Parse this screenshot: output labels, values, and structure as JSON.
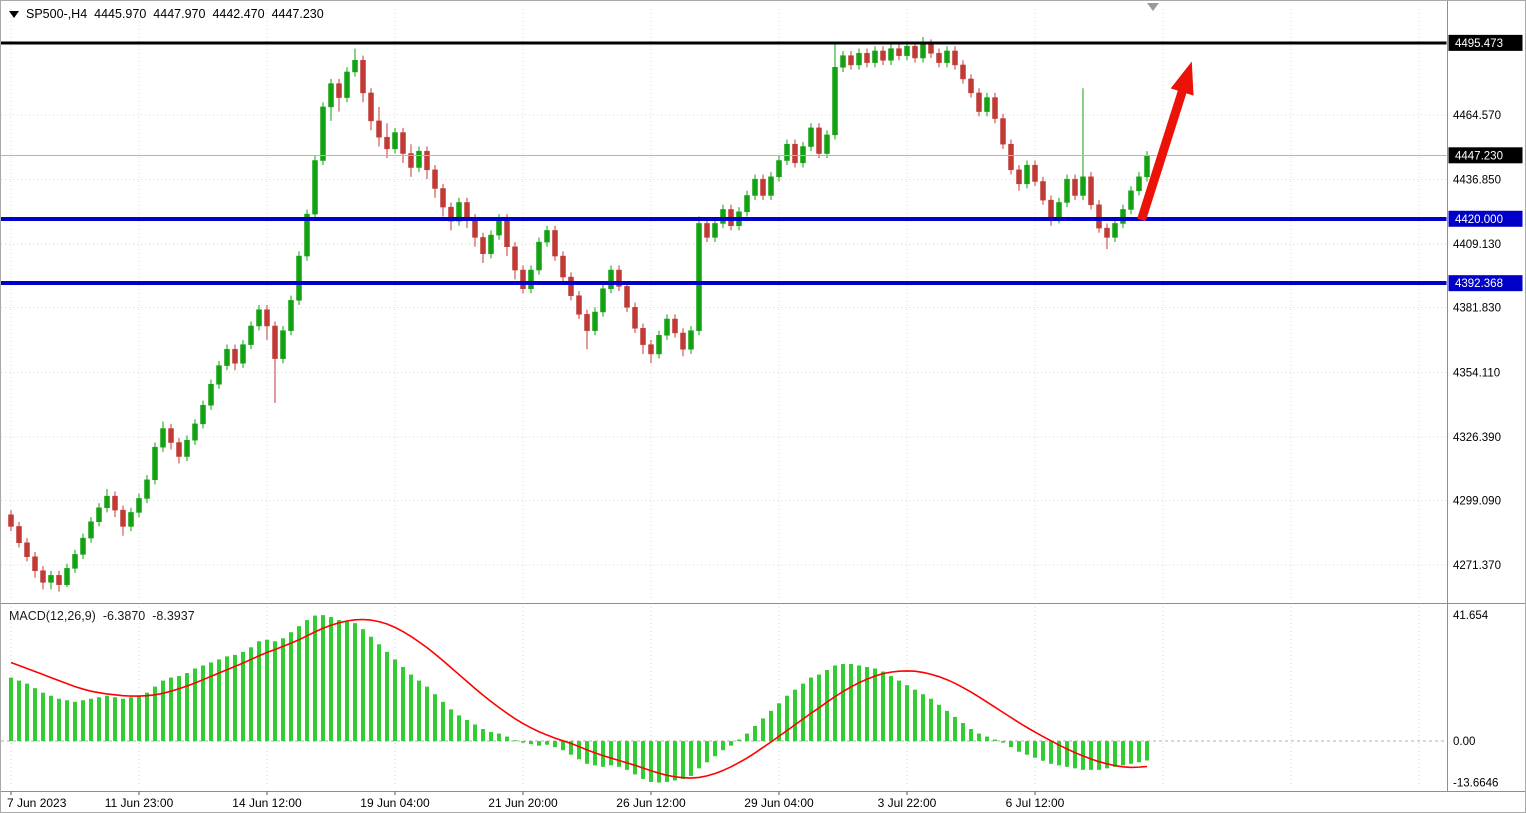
{
  "symbol_info": {
    "symbol": "SP500-,H4",
    "open": "4445.970",
    "high": "4447.970",
    "low": "4442.470",
    "close": "4447.230"
  },
  "macd_label": {
    "name": "MACD(12,26,9)",
    "main_value": "-6.3870",
    "signal_value": "-8.3937"
  },
  "colors": {
    "candle_up": "#12a212",
    "candle_down": "#c13b36",
    "macd_histogram": "#33cc33",
    "macd_signal": "#ff0000",
    "level_blue": "#0000c8",
    "level_black": "#000000",
    "current_price_line": "#b4b4b4",
    "grid": "#d6d6d6",
    "axis_text": "#000000",
    "arrow_red": "#ed1208"
  },
  "chart_data": [
    {
      "type": "candlestick",
      "title": "SP500-,H4",
      "symbol": "SP500-",
      "timeframe": "H4",
      "price_axis": {
        "range": [
          4256,
          4504
        ],
        "ticks": [
          {
            "value": 4464.57,
            "label": "4464.570"
          },
          {
            "value": 4436.85,
            "label": "4436.850"
          },
          {
            "value": 4409.13,
            "label": "4409.130"
          },
          {
            "value": 4381.83,
            "label": "4381.830"
          },
          {
            "value": 4354.11,
            "label": "4354.110"
          },
          {
            "value": 4326.39,
            "label": "4326.390"
          },
          {
            "value": 4299.09,
            "label": "4299.090"
          },
          {
            "value": 4271.37,
            "label": "4271.370"
          }
        ]
      },
      "x_labels": [
        {
          "index": 0,
          "label": "7 Jun 2023"
        },
        {
          "index": 16,
          "label": "11 Jun 23:00"
        },
        {
          "index": 32,
          "label": "14 Jun 12:00"
        },
        {
          "index": 48,
          "label": "19 Jun 04:00"
        },
        {
          "index": 64,
          "label": "21 Jun 20:00"
        },
        {
          "index": 80,
          "label": "26 Jun 12:00"
        },
        {
          "index": 96,
          "label": "29 Jun 04:00"
        },
        {
          "index": 112,
          "label": "3 Jul 22:00"
        },
        {
          "index": 128,
          "label": "6 Jul 12:00"
        }
      ],
      "grid_extra_indices": [
        144,
        160,
        176
      ],
      "current_price": {
        "value": 4447.23,
        "label": "4447.230"
      },
      "levels": [
        {
          "name": "resistance-level-line",
          "value": 4495.473,
          "label": "4495.473",
          "color": "#000000",
          "width": 3
        },
        {
          "name": "support-level-line-1",
          "value": 4420.0,
          "label": "4420.000",
          "color": "#0000c8",
          "width": 4
        },
        {
          "name": "support-level-line-2",
          "value": 4392.368,
          "label": "4392.368",
          "color": "#0000c8",
          "width": 4
        }
      ],
      "annotations": [
        {
          "name": "bullish-arrow",
          "type": "arrow",
          "from": {
            "index": 141.3,
            "price": 4419.5
          },
          "to": {
            "index": 147.6,
            "price": 4487.5
          },
          "color": "#ed1208"
        }
      ],
      "candles": [
        [
          4293,
          4295,
          4286,
          4288
        ],
        [
          4288,
          4290,
          4279,
          4281
        ],
        [
          4281,
          4283,
          4273,
          4275
        ],
        [
          4275,
          4277,
          4266,
          4269
        ],
        [
          4269,
          4271,
          4261,
          4264
        ],
        [
          4264,
          4269,
          4261,
          4267
        ],
        [
          4267,
          4269,
          4260,
          4263
        ],
        [
          4263,
          4272,
          4262,
          4270
        ],
        [
          4270,
          4278,
          4268,
          4276
        ],
        [
          4276,
          4285,
          4274,
          4283
        ],
        [
          4283,
          4292,
          4281,
          4290
        ],
        [
          4290,
          4298,
          4288,
          4296
        ],
        [
          4296,
          4304,
          4294,
          4301
        ],
        [
          4301,
          4303,
          4292,
          4295
        ],
        [
          4295,
          4297,
          4284,
          4288
        ],
        [
          4288,
          4296,
          4286,
          4294
        ],
        [
          4294,
          4302,
          4292,
          4300
        ],
        [
          4300,
          4310,
          4298,
          4308
        ],
        [
          4308,
          4324,
          4306,
          4322
        ],
        [
          4322,
          4333,
          4320,
          4330
        ],
        [
          4330,
          4332,
          4321,
          4324
        ],
        [
          4324,
          4326,
          4315,
          4318
        ],
        [
          4318,
          4327,
          4316,
          4325
        ],
        [
          4325,
          4334,
          4323,
          4332
        ],
        [
          4332,
          4342,
          4330,
          4340
        ],
        [
          4340,
          4351,
          4338,
          4349
        ],
        [
          4349,
          4359,
          4347,
          4357
        ],
        [
          4357,
          4366,
          4355,
          4364
        ],
        [
          4364,
          4366,
          4355,
          4358
        ],
        [
          4358,
          4368,
          4356,
          4366
        ],
        [
          4366,
          4376,
          4364,
          4374
        ],
        [
          4374,
          4383,
          4372,
          4381
        ],
        [
          4381,
          4383,
          4368,
          4374
        ],
        [
          4374,
          4376,
          4341,
          4360
        ],
        [
          4360,
          4374,
          4358,
          4372
        ],
        [
          4372,
          4387,
          4370,
          4385
        ],
        [
          4385,
          4406,
          4383,
          4404
        ],
        [
          4404,
          4424,
          4402,
          4422
        ],
        [
          4422,
          4447,
          4420,
          4445
        ],
        [
          4445,
          4470,
          4443,
          4468
        ],
        [
          4468,
          4480,
          4462,
          4478
        ],
        [
          4478,
          4480,
          4466,
          4472
        ],
        [
          4472,
          4485,
          4470,
          4483
        ],
        [
          4483,
          4493,
          4481,
          4488
        ],
        [
          4488,
          4490,
          4470,
          4474
        ],
        [
          4474,
          4476,
          4458,
          4462
        ],
        [
          4462,
          4468,
          4451,
          4455
        ],
        [
          4455,
          4461,
          4446,
          4450
        ],
        [
          4450,
          4459,
          4448,
          4457
        ],
        [
          4457,
          4459,
          4444,
          4448
        ],
        [
          4448,
          4452,
          4438,
          4442
        ],
        [
          4442,
          4451,
          4440,
          4449
        ],
        [
          4449,
          4451,
          4437,
          4441
        ],
        [
          4441,
          4443,
          4429,
          4433
        ],
        [
          4433,
          4435,
          4421,
          4425
        ],
        [
          4425,
          4427,
          4415,
          4419
        ],
        [
          4419,
          4429,
          4417,
          4427
        ],
        [
          4427,
          4429,
          4416,
          4420
        ],
        [
          4420,
          4422,
          4408,
          4412
        ],
        [
          4412,
          4414,
          4401,
          4405
        ],
        [
          4405,
          4415,
          4403,
          4413
        ],
        [
          4413,
          4422,
          4411,
          4420
        ],
        [
          4420,
          4422,
          4404,
          4408
        ],
        [
          4408,
          4410,
          4394,
          4398
        ],
        [
          4398,
          4400,
          4388,
          4390
        ],
        [
          4390,
          4400,
          4388,
          4398
        ],
        [
          4398,
          4412,
          4396,
          4410
        ],
        [
          4410,
          4417,
          4408,
          4415
        ],
        [
          4415,
          4417,
          4402,
          4404
        ],
        [
          4404,
          4406,
          4393,
          4395
        ],
        [
          4395,
          4397,
          4385,
          4387
        ],
        [
          4387,
          4389,
          4377,
          4379
        ],
        [
          4379,
          4381,
          4364,
          4372
        ],
        [
          4372,
          4382,
          4370,
          4380
        ],
        [
          4380,
          4392,
          4378,
          4390
        ],
        [
          4390,
          4400,
          4388,
          4398
        ],
        [
          4398,
          4400,
          4389,
          4391
        ],
        [
          4391,
          4393,
          4380,
          4382
        ],
        [
          4382,
          4384,
          4371,
          4373
        ],
        [
          4373,
          4375,
          4362,
          4366
        ],
        [
          4366,
          4368,
          4358,
          4362
        ],
        [
          4362,
          4372,
          4360,
          4370
        ],
        [
          4370,
          4379,
          4368,
          4377
        ],
        [
          4377,
          4379,
          4369,
          4371
        ],
        [
          4371,
          4373,
          4361,
          4364
        ],
        [
          4364,
          4374,
          4362,
          4372
        ],
        [
          4372,
          4421,
          4370,
          4418
        ],
        [
          4418,
          4420,
          4410,
          4412
        ],
        [
          4412,
          4420,
          4410,
          4418
        ],
        [
          4418,
          4426,
          4416,
          4424
        ],
        [
          4424,
          4426,
          4415,
          4417
        ],
        [
          4417,
          4425,
          4415,
          4423
        ],
        [
          4423,
          4432,
          4421,
          4430
        ],
        [
          4430,
          4439,
          4428,
          4437
        ],
        [
          4437,
          4439,
          4428,
          4430
        ],
        [
          4430,
          4440,
          4428,
          4438
        ],
        [
          4438,
          4447,
          4436,
          4445
        ],
        [
          4445,
          4454,
          4443,
          4452
        ],
        [
          4452,
          4454,
          4442,
          4444
        ],
        [
          4444,
          4453,
          4442,
          4451
        ],
        [
          4451,
          4461,
          4449,
          4459
        ],
        [
          4459,
          4461,
          4446,
          4448
        ],
        [
          4448,
          4458,
          4446,
          4456
        ],
        [
          4456,
          4496,
          4454,
          4485
        ],
        [
          4485,
          4492,
          4483,
          4490
        ],
        [
          4490,
          4492,
          4484,
          4486
        ],
        [
          4486,
          4493,
          4484,
          4491
        ],
        [
          4491,
          4493,
          4485,
          4487
        ],
        [
          4487,
          4494,
          4485,
          4492
        ],
        [
          4492,
          4494,
          4486,
          4488
        ],
        [
          4488,
          4495,
          4486,
          4493
        ],
        [
          4493,
          4495,
          4488,
          4490
        ],
        [
          4490,
          4496,
          4488,
          4494
        ],
        [
          4494,
          4496,
          4487,
          4489
        ],
        [
          4489,
          4498,
          4487,
          4495
        ],
        [
          4495,
          4497,
          4489,
          4491
        ],
        [
          4491,
          4493,
          4485,
          4487
        ],
        [
          4487,
          4494,
          4485,
          4492
        ],
        [
          4492,
          4494,
          4484,
          4486
        ],
        [
          4486,
          4488,
          4478,
          4480
        ],
        [
          4480,
          4482,
          4472,
          4474
        ],
        [
          4474,
          4476,
          4464,
          4466
        ],
        [
          4466,
          4474,
          4464,
          4472
        ],
        [
          4472,
          4474,
          4461,
          4463
        ],
        [
          4463,
          4465,
          4450,
          4452
        ],
        [
          4452,
          4454,
          4439,
          4441
        ],
        [
          4441,
          4443,
          4432,
          4435
        ],
        [
          4435,
          4445,
          4433,
          4443
        ],
        [
          4443,
          4445,
          4434,
          4436
        ],
        [
          4436,
          4438,
          4426,
          4428
        ],
        [
          4428,
          4430,
          4417,
          4420
        ],
        [
          4420,
          4429,
          4418,
          4427
        ],
        [
          4427,
          4439,
          4425,
          4437
        ],
        [
          4437,
          4439,
          4428,
          4430
        ],
        [
          4430,
          4476,
          4428,
          4438
        ],
        [
          4438,
          4440,
          4424,
          4426
        ],
        [
          4426,
          4428,
          4414,
          4416
        ],
        [
          4416,
          4418,
          4407,
          4412
        ],
        [
          4412,
          4420,
          4410,
          4418
        ],
        [
          4418,
          4426,
          4416,
          4424
        ],
        [
          4424,
          4434,
          4422,
          4432
        ],
        [
          4432,
          4440,
          4430,
          4438
        ],
        [
          4438,
          4449,
          4436,
          4447.2
        ]
      ]
    },
    {
      "type": "bar",
      "name": "MACD(12,26,9)",
      "main_value": -6.387,
      "signal_value": -8.3937,
      "range": [
        -15.5,
        44
      ],
      "axis_ticks": [
        {
          "value": 41.654,
          "label": "41.654"
        },
        {
          "value": 0,
          "label": "0.00"
        },
        {
          "value": -13.6646,
          "label": "-13.6646"
        }
      ],
      "histogram": [
        21,
        20,
        19,
        17.5,
        16,
        15,
        14,
        13.5,
        13,
        13.5,
        14,
        14.5,
        15,
        14.5,
        14,
        14.5,
        15,
        16,
        18,
        20,
        21,
        21.5,
        22.5,
        24,
        25,
        26,
        27,
        28,
        28.5,
        29.5,
        31,
        33,
        33.5,
        33,
        34,
        36,
        38,
        40,
        41.5,
        41.65,
        41,
        40,
        39.5,
        39,
        37,
        34.5,
        32,
        29.5,
        27,
        24.5,
        22,
        20,
        18,
        15.5,
        13,
        10.5,
        8.5,
        7,
        5.5,
        4,
        3,
        2.5,
        1.5,
        0.3,
        -0.5,
        -1,
        -1.5,
        -1.2,
        -2,
        -3,
        -4.5,
        -6,
        -7.5,
        -8,
        -8.5,
        -8,
        -8.5,
        -9.5,
        -11,
        -12.5,
        -13.5,
        -13.7,
        -13.5,
        -13,
        -12.5,
        -11.5,
        -9,
        -7,
        -5,
        -3,
        -1.5,
        0.5,
        2.5,
        5,
        7.5,
        10,
        12.5,
        15,
        17,
        19,
        21,
        22,
        23.5,
        25,
        25.5,
        25.5,
        25,
        24.5,
        24,
        23,
        21.5,
        20,
        18.5,
        17,
        15.5,
        14,
        12,
        10,
        8,
        6,
        4,
        2.5,
        1.5,
        0.5,
        -0.5,
        -2,
        -3.5,
        -4.5,
        -5.5,
        -6.5,
        -7.5,
        -8,
        -8.5,
        -9,
        -9.5,
        -9.5,
        -9.5,
        -9,
        -8.5,
        -8,
        -7.5,
        -7,
        -6.39
      ],
      "signal": [
        26,
        25,
        24,
        23,
        22,
        21,
        20,
        19,
        18,
        17.2,
        16.5,
        16,
        15.6,
        15.3,
        15,
        14.9,
        14.9,
        15,
        15.3,
        15.8,
        16.5,
        17.3,
        18.2,
        19.2,
        20.3,
        21.4,
        22.5,
        23.6,
        24.7,
        25.8,
        27,
        28.2,
        29.3,
        30.3,
        31.3,
        32.4,
        33.5,
        34.8,
        36.1,
        37.3,
        38.3,
        39.1,
        39.7,
        40.1,
        40.2,
        40,
        39.5,
        38.7,
        37.6,
        36.2,
        34.6,
        32.8,
        30.9,
        28.8,
        26.6,
        24.3,
        22,
        19.7,
        17.4,
        15.2,
        13.1,
        11.1,
        9.2,
        7.4,
        5.8,
        4.4,
        3.1,
        2,
        1,
        0.1,
        -0.8,
        -1.8,
        -2.9,
        -3.9,
        -4.8,
        -5.6,
        -6.4,
        -7.2,
        -8,
        -8.9,
        -9.8,
        -10.6,
        -11.3,
        -11.8,
        -12.1,
        -12.2,
        -12,
        -11.5,
        -10.7,
        -9.7,
        -8.5,
        -7.1,
        -5.6,
        -3.9,
        -2.1,
        -0.3,
        1.6,
        3.5,
        5.4,
        7.3,
        9.2,
        11,
        12.9,
        14.7,
        16.4,
        17.9,
        19.3,
        20.5,
        21.5,
        22.3,
        22.8,
        23.1,
        23.2,
        23.1,
        22.7,
        22.1,
        21.3,
        20.3,
        19.1,
        17.7,
        16.2,
        14.6,
        12.9,
        11.2,
        9.5,
        7.8,
        6.1,
        4.5,
        3,
        1.5,
        0.1,
        -1.3,
        -2.6,
        -3.8,
        -4.9,
        -5.9,
        -6.8,
        -7.5,
        -8.1,
        -8.5,
        -8.7,
        -8.6,
        -8.39
      ]
    }
  ]
}
